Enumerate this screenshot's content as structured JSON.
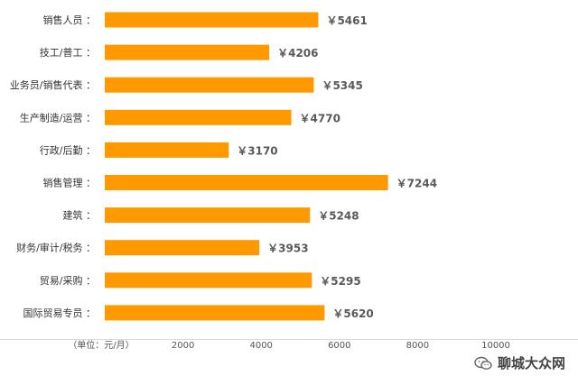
{
  "chart_data": {
    "type": "bar",
    "orientation": "horizontal",
    "categories": [
      "销售人员",
      "技工/普工",
      "业务员/销售代表",
      "生产制造/运营",
      "行政/后勤",
      "销售管理",
      "建筑",
      "财务/审计/税务",
      "贸易/采购",
      "国际贸易专员"
    ],
    "values": [
      5461,
      4206,
      5345,
      4770,
      3170,
      7244,
      5248,
      3953,
      5295,
      5620
    ],
    "value_labels": [
      "￥5461",
      "￥4206",
      "￥5345",
      "￥4770",
      "￥3170",
      "￥7244",
      "￥5248",
      "￥3953",
      "￥5295",
      "￥5620"
    ],
    "category_suffix": "：",
    "x_ticks": [
      "2000",
      "4000",
      "6000",
      "8000",
      "10000"
    ],
    "x_tick_values": [
      2000,
      4000,
      6000,
      8000,
      10000
    ],
    "xlim": [
      0,
      11000
    ],
    "unit_label": "（单位：元/月）",
    "bar_color": "#FF9900",
    "grid": false,
    "legend": "none"
  },
  "watermark": {
    "text": "聊城大众网",
    "icon": "wechat-icon"
  }
}
